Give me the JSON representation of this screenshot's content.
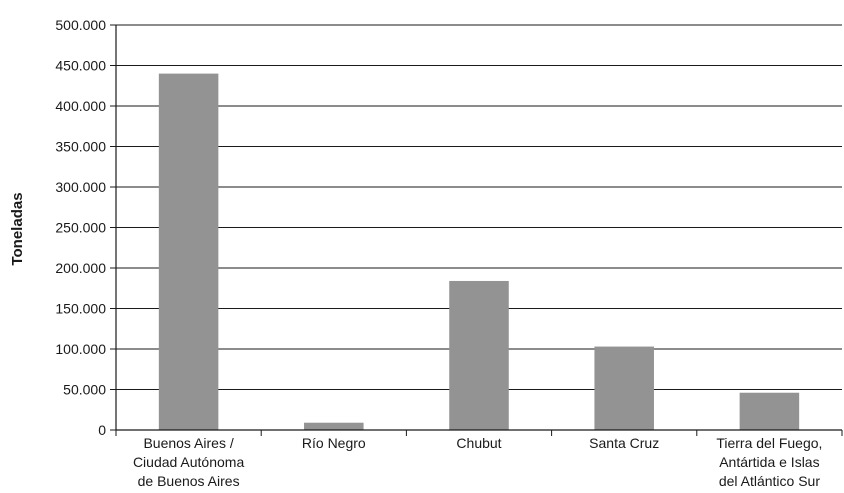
{
  "chart_data": {
    "type": "bar",
    "title": "",
    "xlabel": "",
    "ylabel": "Toneladas",
    "ylim": [
      0,
      500000
    ],
    "yticks": [
      0,
      50000,
      100000,
      150000,
      200000,
      250000,
      300000,
      350000,
      400000,
      450000,
      500000
    ],
    "ytick_labels": [
      "0",
      "50.000",
      "100.000",
      "150.000",
      "200.000",
      "250.000",
      "300.000",
      "350.000",
      "400.000",
      "450.000",
      "500.000"
    ],
    "categories": [
      [
        "Buenos Aires /",
        "Ciudad Autónoma",
        "de Buenos Aires"
      ],
      [
        "Río Negro"
      ],
      [
        "Chubut"
      ],
      [
        "Santa Cruz"
      ],
      [
        "Tierra del Fuego,",
        "Antártida e Islas",
        "del Atlántico Sur"
      ]
    ],
    "values": [
      440000,
      9000,
      184000,
      103000,
      46000
    ],
    "grid": true,
    "bar_color": "#939393",
    "grid_color": "#1a1a1a"
  }
}
